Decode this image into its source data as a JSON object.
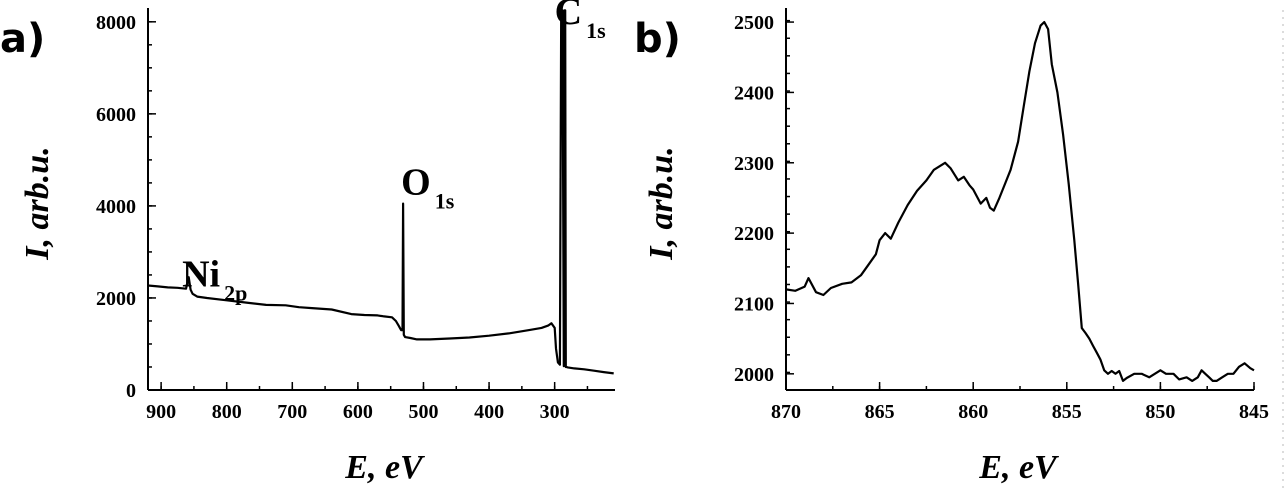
{
  "chart_data": [
    {
      "type": "line",
      "panel_label": "a)",
      "xlabel": "E, eV",
      "ylabel": "I, arb.u.",
      "xlim": [
        920,
        208
      ],
      "ylim": [
        0,
        8300
      ],
      "x_ticks": [
        900,
        800,
        700,
        600,
        500,
        400,
        300
      ],
      "y_ticks": [
        0,
        2000,
        4000,
        6000,
        8000
      ],
      "x_tick_labels": [
        "900",
        "800",
        "700",
        "600",
        "500",
        "400",
        "300"
      ],
      "y_tick_labels": [
        "0",
        "2000",
        "4000",
        "6000",
        "8000"
      ],
      "annotations": [
        {
          "main": "Ni",
          "sub": "2p",
          "x": 868,
          "y": 2250
        },
        {
          "main": "O",
          "sub": "1s",
          "x": 534,
          "y": 4250
        },
        {
          "main": "C",
          "sub": "1s",
          "x": 300,
          "y": 7950
        }
      ],
      "series": [
        {
          "x": [
            920,
            905,
            890,
            875,
            862,
            858,
            855,
            852,
            845,
            830,
            800,
            770,
            740,
            710,
            690,
            670,
            640,
            610,
            590,
            570,
            560,
            548,
            542,
            538,
            536,
            534,
            532,
            531,
            530,
            528,
            520,
            510,
            490,
            460,
            430,
            400,
            370,
            340,
            320,
            310,
            305,
            300,
            298,
            295,
            292,
            290,
            288,
            286,
            285,
            284,
            283,
            282,
            280,
            270,
            255,
            240,
            225,
            210
          ],
          "y": [
            2270,
            2250,
            2230,
            2220,
            2200,
            2450,
            2180,
            2090,
            2030,
            2000,
            1950,
            1900,
            1850,
            1840,
            1800,
            1780,
            1750,
            1650,
            1630,
            1620,
            1600,
            1580,
            1500,
            1400,
            1350,
            1300,
            1300,
            4050,
            1200,
            1150,
            1130,
            1100,
            1100,
            1120,
            1140,
            1180,
            1230,
            1300,
            1350,
            1400,
            1450,
            1350,
            900,
            600,
            550,
            8250,
            8250,
            520,
            8250,
            8250,
            500,
            500,
            490,
            470,
            450,
            420,
            390,
            360
          ]
        }
      ]
    },
    {
      "type": "line",
      "panel_label": "b)",
      "xlabel": "E, eV",
      "ylabel": "I, arb.u.",
      "xlim": [
        870,
        845
      ],
      "ylim": [
        1977,
        2520
      ],
      "x_ticks": [
        870,
        865,
        860,
        855,
        850,
        845
      ],
      "y_ticks": [
        2000,
        2100,
        2200,
        2300,
        2400,
        2500
      ],
      "x_tick_labels": [
        "870",
        "865",
        "860",
        "855",
        "850",
        "845"
      ],
      "y_tick_labels": [
        "2000",
        "2100",
        "2200",
        "2300",
        "2400",
        "2500"
      ],
      "series": [
        {
          "x": [
            870,
            869.5,
            869,
            868.8,
            868.4,
            868,
            867.6,
            867,
            866.5,
            866,
            865.6,
            865.2,
            865,
            864.7,
            864.4,
            864,
            863.5,
            863,
            862.5,
            862.1,
            861.8,
            861.5,
            861.2,
            860.8,
            860.5,
            860.2,
            860,
            859.6,
            859.3,
            859.1,
            858.9,
            858.6,
            858.3,
            858,
            857.6,
            857.3,
            857,
            856.7,
            856.4,
            856.2,
            856,
            855.8,
            855.5,
            855.2,
            854.9,
            854.6,
            854.4,
            854.2,
            854,
            853.8,
            853.6,
            853.4,
            853.2,
            853,
            852.8,
            852.6,
            852.4,
            852.2,
            852,
            851.8,
            851.4,
            851,
            850.6,
            850.3,
            850,
            849.7,
            849.3,
            849,
            848.6,
            848.3,
            848,
            847.8,
            847.6,
            847.4,
            847.2,
            847,
            846.7,
            846.4,
            846.1,
            845.8,
            845.5,
            845.2,
            845
          ],
          "y": [
            2120,
            2118,
            2124,
            2136,
            2116,
            2112,
            2122,
            2128,
            2130,
            2140,
            2155,
            2170,
            2190,
            2200,
            2192,
            2215,
            2240,
            2260,
            2275,
            2290,
            2295,
            2300,
            2292,
            2275,
            2280,
            2268,
            2262,
            2242,
            2250,
            2236,
            2232,
            2250,
            2270,
            2290,
            2330,
            2380,
            2430,
            2470,
            2495,
            2500,
            2490,
            2440,
            2400,
            2340,
            2270,
            2190,
            2130,
            2065,
            2058,
            2050,
            2040,
            2030,
            2020,
            2005,
            2000,
            2004,
            2000,
            2004,
            1990,
            1994,
            2000,
            2000,
            1995,
            2000,
            2005,
            2000,
            2000,
            1992,
            1995,
            1990,
            1995,
            2005,
            2000,
            1995,
            1990,
            1990,
            1995,
            2000,
            2000,
            2010,
            2015,
            2008,
            2005
          ]
        }
      ]
    }
  ]
}
